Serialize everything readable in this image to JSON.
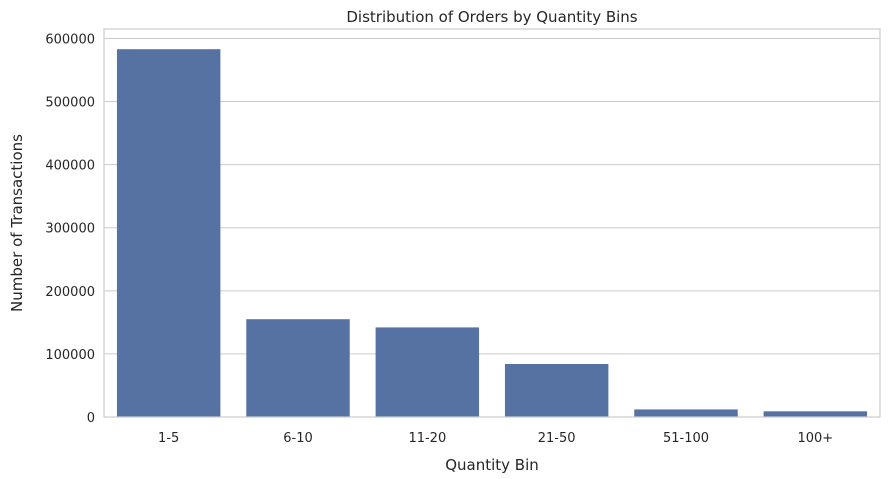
{
  "chart_data": {
    "type": "bar",
    "title": "Distribution of Orders by Quantity Bins",
    "xlabel": "Quantity Bin",
    "ylabel": "Number of Transactions",
    "categories": [
      "1-5",
      "6-10",
      "11-20",
      "21-50",
      "51-100",
      "100+"
    ],
    "values": [
      583000,
      155000,
      142000,
      84000,
      12000,
      9000
    ],
    "ylim": [
      0,
      615000
    ],
    "yticks": [
      0,
      100000,
      200000,
      300000,
      400000,
      500000,
      600000
    ],
    "ytick_labels": [
      "0",
      "100000",
      "200000",
      "300000",
      "400000",
      "500000",
      "600000"
    ],
    "grid": "horizontal",
    "bar_color": "#5572a3"
  }
}
